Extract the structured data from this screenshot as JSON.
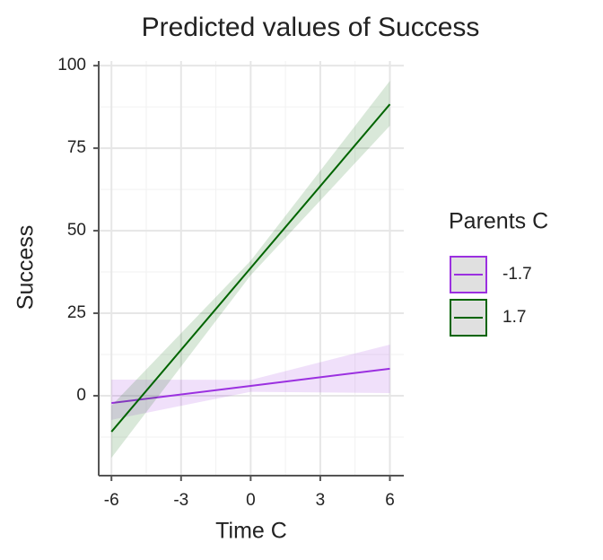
{
  "chart_data": {
    "type": "line",
    "title": "Predicted values of Success",
    "x_label": "Time C",
    "y_label": "Success",
    "x": [
      -6,
      0,
      6
    ],
    "series": [
      {
        "name": "-1.7",
        "color": "#9b30e0",
        "values": [
          -2.2,
          3.0,
          8.2
        ],
        "lower": [
          -7.3,
          1.2,
          0.8
        ],
        "upper": [
          4.9,
          4.8,
          15.5
        ]
      },
      {
        "name": "1.7",
        "color": "#006400",
        "values": [
          -10.9,
          38.7,
          88.3
        ],
        "lower": [
          -18.8,
          36.5,
          81.8
        ],
        "upper": [
          -3.0,
          40.9,
          95.4
        ]
      }
    ],
    "legend_title": "Parents C",
    "legend": "right",
    "xlim": [
      -6.55,
      6.6
    ],
    "ylim": [
      -24.2,
      101.4
    ],
    "xticks": [
      -6,
      -3,
      0,
      3,
      6
    ],
    "yticks": [
      0,
      25,
      50,
      75,
      100
    ],
    "x_minor_ticks": [
      -4.5,
      -1.5,
      1.5,
      4.5
    ],
    "y_minor_ticks": [
      -12.5,
      12.5,
      37.5,
      62.5,
      87.5
    ],
    "grid": true
  }
}
